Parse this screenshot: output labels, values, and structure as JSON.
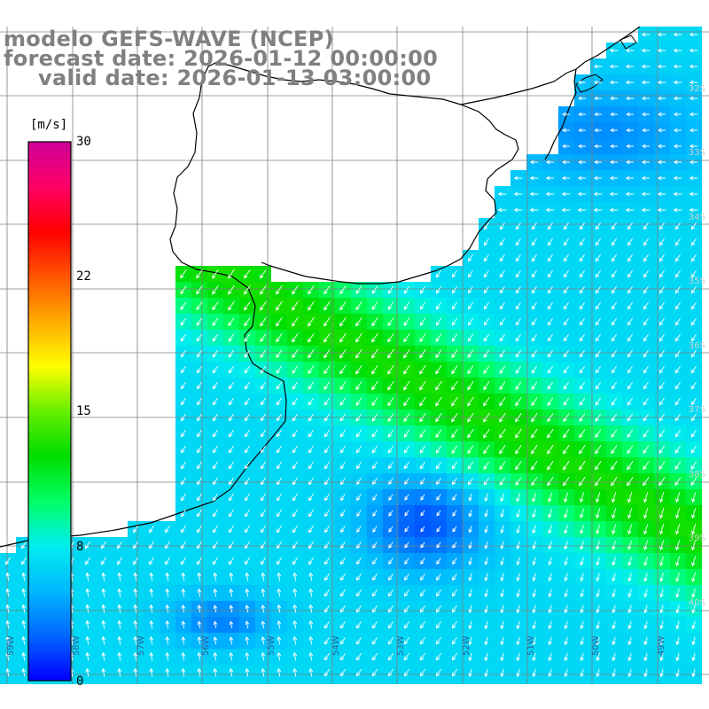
{
  "header": {
    "model_line": "modelo GEFS-WAVE (NCEP)",
    "forecast_line": "forecast date: 2026-01-12 00:00:00",
    "valid_line": "valid date: 2026-01-13 03:00:00"
  },
  "colorbar": {
    "unit": "[m/s]",
    "ticks": [
      "30",
      "22",
      "15",
      "8",
      "0"
    ],
    "tick_values": [
      30,
      22,
      15,
      8,
      0
    ],
    "range": [
      0,
      30
    ],
    "colors": [
      "#0000ff",
      "#0066ff",
      "#00b8ff",
      "#00eeee",
      "#00ff66",
      "#00dd00",
      "#66ee00",
      "#ffff00",
      "#ffaa00",
      "#ff5500",
      "#ff0000",
      "#ff0066",
      "#cc0099"
    ]
  },
  "map": {
    "lat_labels": [
      "32S",
      "33S",
      "34S",
      "35S",
      "36S",
      "37S",
      "38S",
      "39S",
      "40S"
    ],
    "lon_labels": [
      "59W",
      "58W",
      "57W",
      "56W",
      "55W",
      "54W",
      "53W",
      "52W",
      "51W",
      "50W",
      "49W"
    ],
    "land_color": "#ffffff",
    "grid_color": "#808080",
    "coast_color": "#000000",
    "arrow_color": "#ffffff"
  }
}
